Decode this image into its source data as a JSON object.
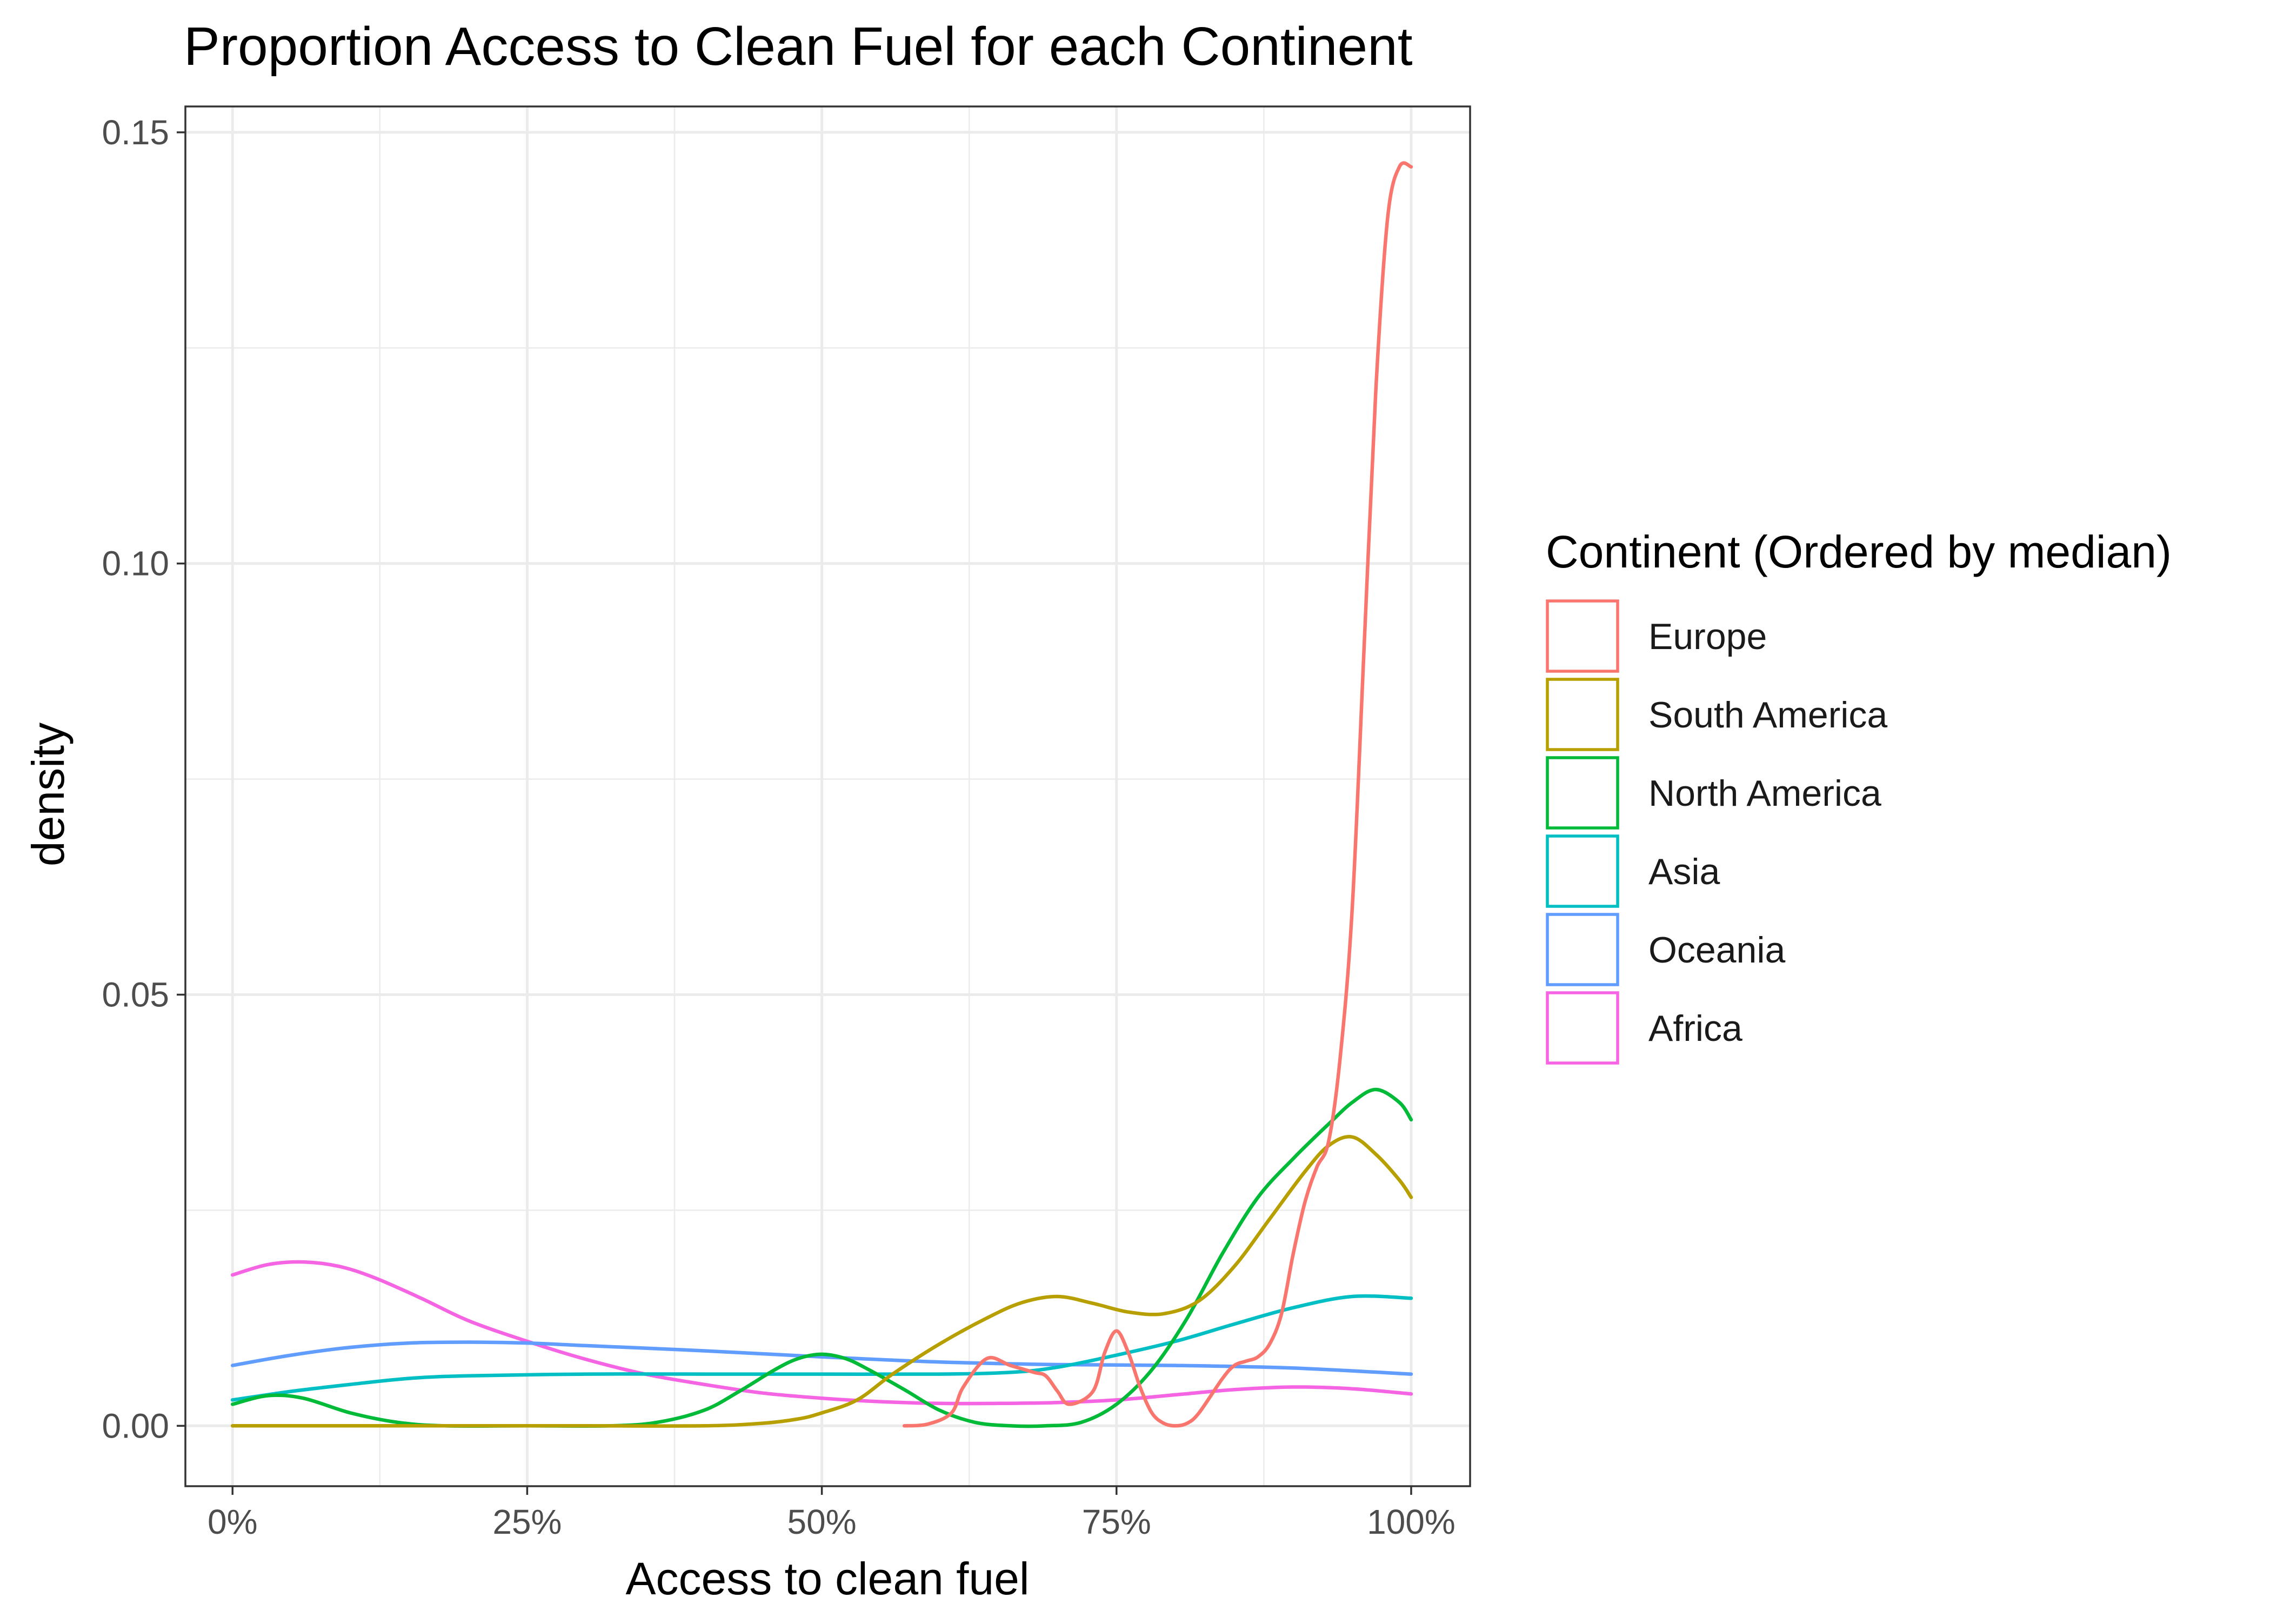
{
  "chart_data": {
    "type": "line",
    "title": "Proportion Access to Clean Fuel for each Continent",
    "xlabel": "Access to clean fuel",
    "ylabel": "density",
    "xlim": [
      -4,
      105
    ],
    "ylim": [
      -0.007,
      0.153
    ],
    "x_ticks": [
      0,
      25,
      50,
      75,
      100
    ],
    "x_tick_labels": [
      "0%",
      "25%",
      "50%",
      "75%",
      "100%"
    ],
    "y_ticks": [
      0,
      0.05,
      0.1,
      0.15
    ],
    "y_tick_labels": [
      "0.00",
      "0.05",
      "0.10",
      "0.15"
    ],
    "grid": true,
    "legend": {
      "title": "Continent (Ordered by median)",
      "position": "right"
    },
    "series": [
      {
        "name": "Europe",
        "color": "#F8766D",
        "x": [
          57,
          59,
          61,
          62,
          64,
          66,
          68,
          69,
          70,
          71,
          73,
          74,
          75,
          76,
          77,
          78,
          79,
          80,
          81,
          82,
          84,
          85,
          86,
          87,
          88,
          89,
          90,
          91,
          92,
          93,
          94,
          95,
          96,
          97,
          98,
          99,
          100
        ],
        "y": [
          0,
          0.0002,
          0.0015,
          0.0045,
          0.0078,
          0.007,
          0.0062,
          0.0058,
          0.004,
          0.0025,
          0.004,
          0.0085,
          0.011,
          0.0085,
          0.0045,
          0.0015,
          0.0003,
          0,
          0.0003,
          0.0015,
          0.0055,
          0.007,
          0.0075,
          0.008,
          0.0095,
          0.013,
          0.02,
          0.026,
          0.03,
          0.033,
          0.043,
          0.06,
          0.09,
          0.12,
          0.14,
          0.146,
          0.146
        ]
      },
      {
        "name": "South America",
        "color": "#B79F00",
        "x": [
          0,
          10,
          20,
          30,
          40,
          45,
          48,
          50,
          53,
          56,
          60,
          64,
          67,
          70,
          73,
          76,
          79,
          82,
          85,
          88,
          91,
          93,
          95,
          97,
          99,
          100
        ],
        "y": [
          0,
          0,
          0,
          0,
          0,
          0.0003,
          0.0008,
          0.0015,
          0.003,
          0.006,
          0.0095,
          0.0125,
          0.0143,
          0.015,
          0.0142,
          0.0132,
          0.013,
          0.0145,
          0.0185,
          0.024,
          0.0295,
          0.0325,
          0.0335,
          0.0315,
          0.0285,
          0.0265
        ]
      },
      {
        "name": "North America",
        "color": "#00BA38",
        "x": [
          0,
          3,
          6,
          10,
          14,
          18,
          25,
          32,
          36,
          40,
          43,
          46,
          48,
          50,
          52,
          54,
          57,
          60,
          63,
          66,
          69,
          72,
          75,
          78,
          81,
          84,
          87,
          90,
          93,
          95,
          97,
          99,
          100
        ],
        "y": [
          0.0025,
          0.0035,
          0.0032,
          0.0015,
          0.0004,
          0,
          0,
          0,
          0.0004,
          0.0018,
          0.004,
          0.0065,
          0.0078,
          0.0083,
          0.0078,
          0.0065,
          0.0042,
          0.0018,
          0.0004,
          0,
          0,
          0.0004,
          0.0025,
          0.0065,
          0.0125,
          0.02,
          0.0265,
          0.031,
          0.035,
          0.0375,
          0.039,
          0.0375,
          0.0355
        ]
      },
      {
        "name": "Asia",
        "color": "#00BFC4",
        "x": [
          0,
          5,
          10,
          15,
          20,
          30,
          40,
          50,
          60,
          66,
          70,
          75,
          80,
          85,
          90,
          95,
          100
        ],
        "y": [
          0.003,
          0.004,
          0.0048,
          0.0055,
          0.0058,
          0.006,
          0.006,
          0.006,
          0.006,
          0.0062,
          0.0068,
          0.0082,
          0.0098,
          0.0118,
          0.0137,
          0.015,
          0.0148
        ]
      },
      {
        "name": "Oceania",
        "color": "#619CFF",
        "x": [
          0,
          5,
          10,
          15,
          20,
          25,
          30,
          40,
          50,
          60,
          70,
          80,
          90,
          100
        ],
        "y": [
          0.007,
          0.0082,
          0.0091,
          0.0096,
          0.0097,
          0.0096,
          0.0093,
          0.0087,
          0.008,
          0.0074,
          0.0071,
          0.007,
          0.0067,
          0.006
        ]
      },
      {
        "name": "Africa",
        "color": "#F564E3",
        "x": [
          0,
          3,
          6,
          9,
          12,
          16,
          20,
          25,
          30,
          35,
          40,
          45,
          50,
          55,
          60,
          65,
          70,
          75,
          80,
          85,
          90,
          95,
          100
        ],
        "y": [
          0.0175,
          0.0187,
          0.019,
          0.0185,
          0.0172,
          0.0148,
          0.0122,
          0.0098,
          0.0077,
          0.006,
          0.0048,
          0.0038,
          0.0032,
          0.0028,
          0.0026,
          0.0026,
          0.0027,
          0.003,
          0.0036,
          0.0042,
          0.0045,
          0.0043,
          0.0037
        ]
      }
    ]
  }
}
